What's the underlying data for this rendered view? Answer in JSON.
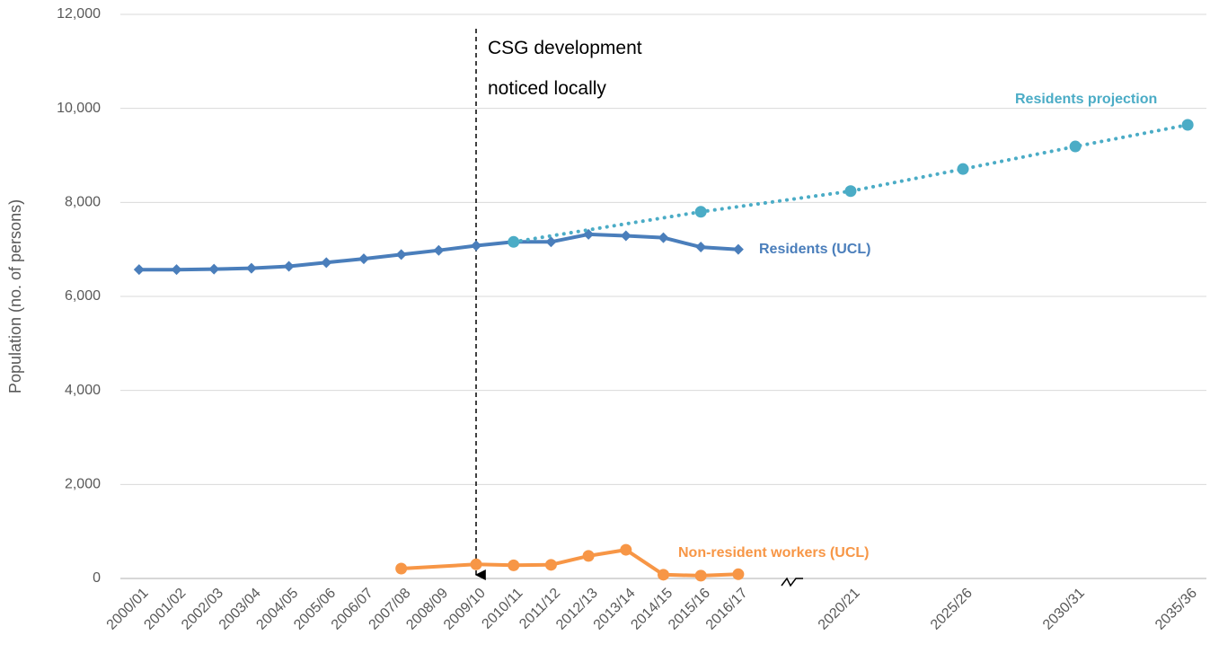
{
  "chart_data": {
    "type": "line",
    "y_label": "Population (no. of persons)",
    "categories": [
      "2000/01",
      "2001/02",
      "2002/03",
      "2003/04",
      "2004/05",
      "2005/06",
      "2006/07",
      "2007/08",
      "2008/09",
      "2009/10",
      "2010/11",
      "2011/12",
      "2012/13",
      "2013/14",
      "2014/15",
      "2015/16",
      "2016/17",
      null,
      null,
      "2020/21",
      null,
      null,
      "2025/26",
      null,
      null,
      "2030/31",
      null,
      null,
      "2035/36"
    ],
    "series": [
      {
        "name": "Residents (UCL)",
        "color": "#4a7ebb",
        "marker": "diamond",
        "line": "solid",
        "connect_gaps": true,
        "values": [
          6570,
          6570,
          6580,
          6600,
          6640,
          6720,
          6800,
          6890,
          6980,
          7080,
          7160,
          7160,
          7320,
          7290,
          7250,
          7050,
          7000,
          null,
          null,
          null,
          null,
          null,
          null,
          null,
          null,
          null,
          null,
          null,
          null
        ]
      },
      {
        "name": "Non-resident workers (UCL)",
        "color": "#f79646",
        "marker": "circle",
        "line": "solid",
        "connect_gaps": true,
        "values": [
          null,
          null,
          null,
          null,
          null,
          null,
          null,
          210,
          null,
          300,
          280,
          290,
          480,
          610,
          80,
          60,
          90,
          null,
          null,
          null,
          null,
          null,
          null,
          null,
          null,
          null,
          null,
          null,
          null
        ]
      },
      {
        "name": "Residents projection",
        "color": "#4bacc6",
        "marker": "circle",
        "line": "dotted",
        "connect_gaps": true,
        "values": [
          null,
          null,
          null,
          null,
          null,
          null,
          null,
          null,
          null,
          null,
          7160,
          null,
          null,
          null,
          null,
          7800,
          null,
          null,
          null,
          8240,
          null,
          null,
          8710,
          null,
          null,
          9190,
          null,
          null,
          9650
        ]
      }
    ],
    "annotation": [
      "CSG development",
      "noticed locally"
    ],
    "ylim": [
      0,
      12000
    ],
    "yticks": [
      0,
      {
        "value": 2000,
        "label": "2,000"
      },
      {
        "value": 4000,
        "label": "4,000"
      },
      {
        "value": 6000,
        "label": "6,000"
      },
      {
        "value": 8000,
        "label": "8,000"
      },
      {
        "value": 10000,
        "label": "10,000"
      },
      {
        "value": 12000,
        "label": "12,000"
      }
    ],
    "grid": true
  }
}
